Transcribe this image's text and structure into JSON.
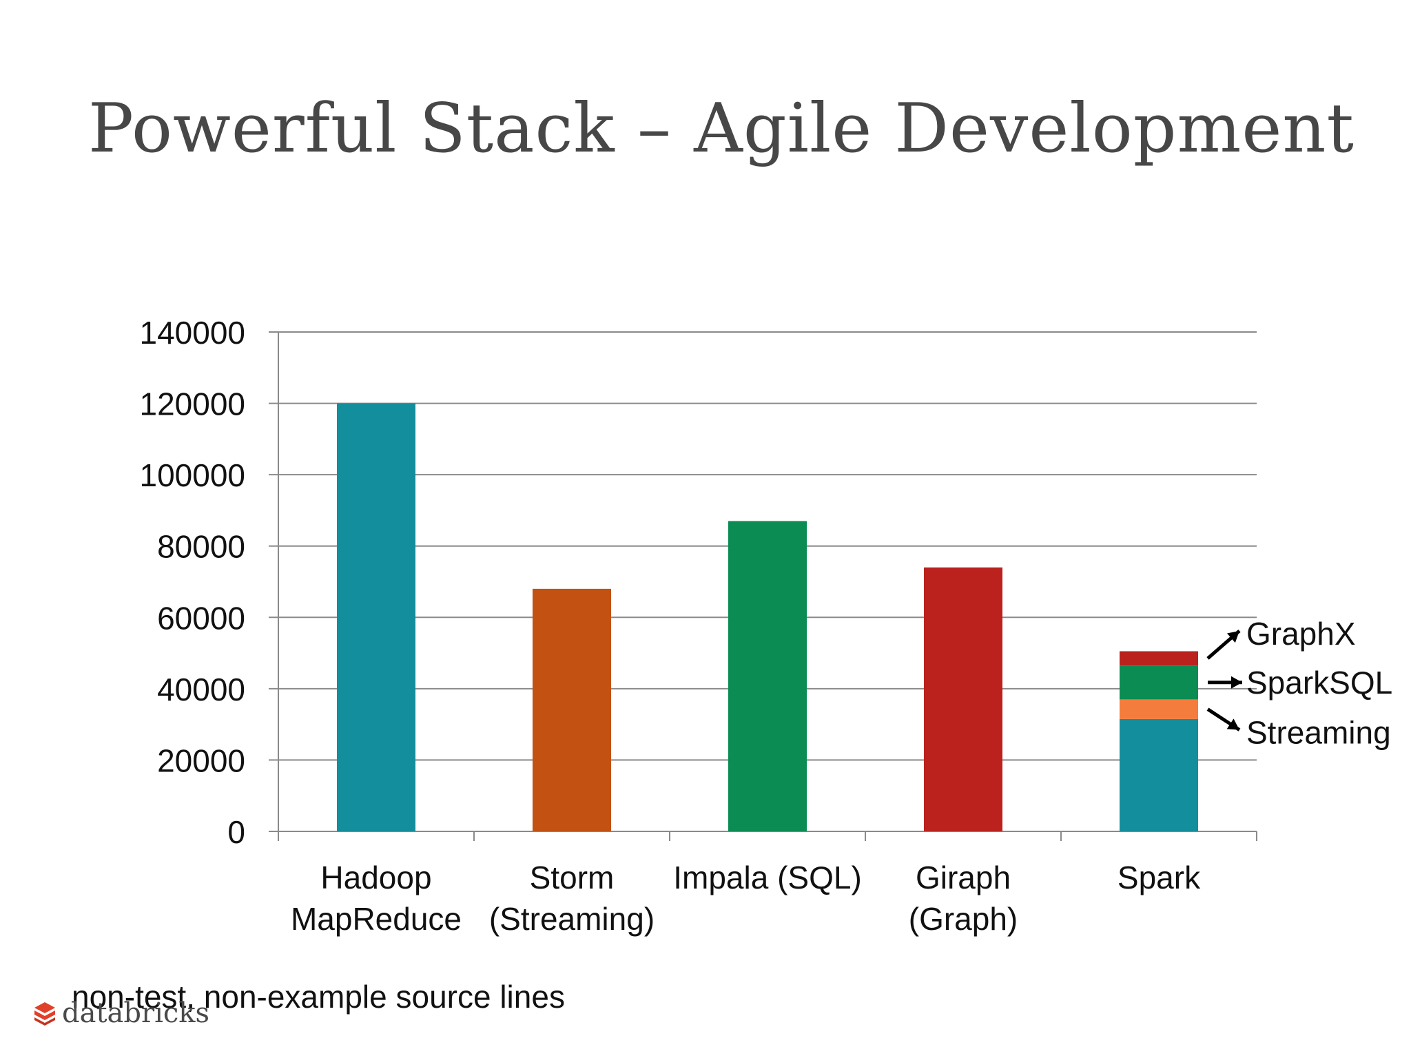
{
  "slide": {
    "title": "Powerful Stack – Agile Development",
    "footnote": "non-test, non-example source lines",
    "logo_text": "databricks",
    "logo_color": "#e0402a"
  },
  "chart_data": {
    "type": "bar",
    "stacked": true,
    "categories": [
      [
        "Hadoop",
        "MapReduce"
      ],
      [
        "Storm",
        "(Streaming)"
      ],
      [
        "Impala (SQL)"
      ],
      [
        "Giraph",
        "(Graph)"
      ],
      [
        "Spark"
      ]
    ],
    "bars": [
      [
        {
          "value": 120000,
          "color": "#138e9c"
        }
      ],
      [
        {
          "value": 68000,
          "color": "#c35112"
        }
      ],
      [
        {
          "value": 87000,
          "color": "#0a8c52"
        }
      ],
      [
        {
          "value": 74000,
          "color": "#bb221d"
        }
      ],
      [
        {
          "value": 31500,
          "color": "#138e9c"
        },
        {
          "value": 5500,
          "color": "#f47c3c",
          "label": "Streaming"
        },
        {
          "value": 9500,
          "color": "#0a8c52",
          "label": "SparkSQL"
        },
        {
          "value": 4000,
          "color": "#bb221d",
          "label": "GraphX"
        }
      ]
    ],
    "ylim": [
      0,
      140000
    ],
    "yticks": [
      0,
      20000,
      40000,
      60000,
      80000,
      100000,
      120000,
      140000
    ],
    "grid": true,
    "legend": "none"
  }
}
